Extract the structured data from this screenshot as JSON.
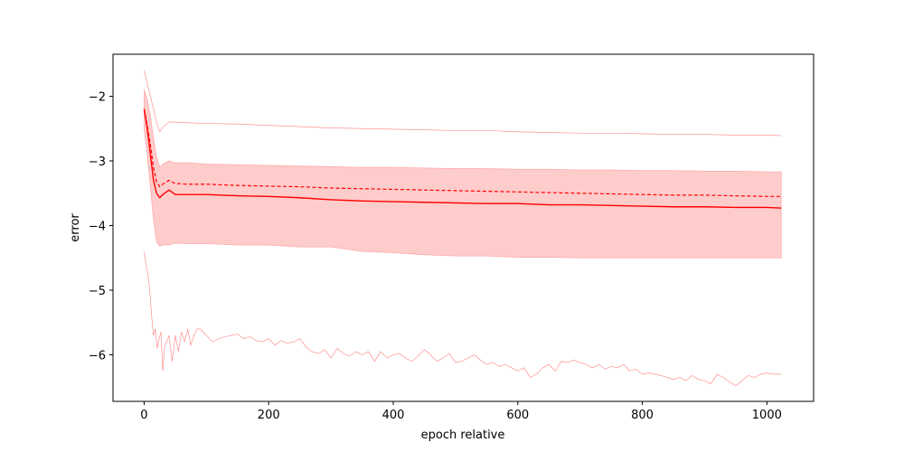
{
  "chart_data": {
    "type": "line",
    "title": "",
    "xlabel": "epoch relative",
    "ylabel": "error",
    "xlim": [
      -50,
      1075
    ],
    "ylim": [
      -6.72,
      -1.35
    ],
    "xticks": [
      0,
      200,
      400,
      600,
      800,
      1000
    ],
    "yticks": [
      -2,
      -3,
      -4,
      -5,
      -6
    ],
    "grid": false,
    "legend": "none",
    "colors": {
      "line": "#ff0000",
      "band_fill": "#ffcccc",
      "band_edge": "#ffaaaa",
      "extreme": "#ff7f7f"
    },
    "band": {
      "x": [
        0,
        5,
        10,
        15,
        20,
        25,
        30,
        40,
        50,
        70,
        100,
        150,
        200,
        250,
        300,
        350,
        400,
        450,
        500,
        550,
        600,
        650,
        700,
        750,
        800,
        850,
        900,
        950,
        1000,
        1023
      ],
      "upper": [
        -1.9,
        -2.05,
        -2.3,
        -2.65,
        -2.95,
        -3.1,
        -3.05,
        -3.0,
        -3.03,
        -3.03,
        -3.05,
        -3.06,
        -3.07,
        -3.08,
        -3.09,
        -3.1,
        -3.1,
        -3.11,
        -3.12,
        -3.12,
        -3.13,
        -3.13,
        -3.14,
        -3.14,
        -3.15,
        -3.15,
        -3.16,
        -3.16,
        -3.17,
        -3.17
      ],
      "lower": [
        -2.5,
        -2.9,
        -3.4,
        -3.9,
        -4.25,
        -4.32,
        -4.3,
        -4.3,
        -4.27,
        -4.28,
        -4.28,
        -4.3,
        -4.3,
        -4.33,
        -4.33,
        -4.4,
        -4.42,
        -4.45,
        -4.47,
        -4.47,
        -4.49,
        -4.49,
        -4.5,
        -4.5,
        -4.5,
        -4.5,
        -4.5,
        -4.5,
        -4.5,
        -4.5
      ]
    },
    "series": [
      {
        "style": "solid",
        "x": [
          0,
          5,
          10,
          15,
          20,
          25,
          30,
          40,
          50,
          70,
          100,
          150,
          200,
          250,
          300,
          350,
          400,
          450,
          500,
          550,
          600,
          650,
          700,
          750,
          800,
          850,
          900,
          950,
          1000,
          1023
        ],
        "y": [
          -2.2,
          -2.5,
          -2.9,
          -3.3,
          -3.5,
          -3.57,
          -3.52,
          -3.45,
          -3.52,
          -3.52,
          -3.52,
          -3.54,
          -3.55,
          -3.57,
          -3.6,
          -3.62,
          -3.63,
          -3.64,
          -3.65,
          -3.66,
          -3.66,
          -3.68,
          -3.68,
          -3.69,
          -3.7,
          -3.71,
          -3.71,
          -3.72,
          -3.72,
          -3.73
        ]
      },
      {
        "style": "dashed",
        "x": [
          0,
          5,
          10,
          15,
          20,
          25,
          30,
          40,
          50,
          70,
          100,
          150,
          200,
          250,
          300,
          350,
          400,
          450,
          500,
          550,
          600,
          650,
          700,
          750,
          800,
          850,
          900,
          950,
          1000,
          1023
        ],
        "y": [
          -2.2,
          -2.45,
          -2.75,
          -3.1,
          -3.32,
          -3.4,
          -3.36,
          -3.3,
          -3.35,
          -3.36,
          -3.36,
          -3.38,
          -3.39,
          -3.4,
          -3.42,
          -3.43,
          -3.44,
          -3.45,
          -3.46,
          -3.47,
          -3.48,
          -3.49,
          -3.5,
          -3.51,
          -3.52,
          -3.53,
          -3.53,
          -3.54,
          -3.55,
          -3.55
        ]
      },
      {
        "style": "thin",
        "x": [
          0,
          10,
          20,
          25,
          30,
          40,
          50,
          70,
          100,
          150,
          200,
          250,
          300,
          350,
          400,
          450,
          500,
          550,
          600,
          650,
          700,
          750,
          800,
          850,
          900,
          950,
          1000,
          1023
        ],
        "y": [
          -1.6,
          -2.0,
          -2.4,
          -2.55,
          -2.48,
          -2.4,
          -2.4,
          -2.41,
          -2.42,
          -2.43,
          -2.45,
          -2.47,
          -2.49,
          -2.5,
          -2.51,
          -2.52,
          -2.53,
          -2.53,
          -2.55,
          -2.56,
          -2.57,
          -2.57,
          -2.58,
          -2.59,
          -2.59,
          -2.6,
          -2.6,
          -2.61
        ]
      },
      {
        "style": "thin",
        "x": [
          0,
          3,
          6,
          9,
          12,
          15,
          18,
          21,
          24,
          27,
          30,
          33,
          36,
          40,
          45,
          50,
          55,
          60,
          65,
          70,
          75,
          80,
          85,
          90,
          95,
          100,
          110,
          120,
          130,
          140,
          150,
          160,
          170,
          180,
          190,
          200,
          210,
          220,
          230,
          240,
          250,
          260,
          270,
          280,
          290,
          300,
          310,
          320,
          330,
          340,
          350,
          360,
          370,
          380,
          390,
          400,
          410,
          420,
          430,
          440,
          450,
          460,
          470,
          480,
          490,
          500,
          510,
          520,
          530,
          540,
          550,
          560,
          570,
          580,
          590,
          600,
          610,
          620,
          630,
          640,
          650,
          660,
          670,
          680,
          690,
          700,
          710,
          720,
          730,
          740,
          750,
          760,
          770,
          780,
          790,
          800,
          810,
          820,
          830,
          840,
          850,
          860,
          870,
          880,
          890,
          900,
          910,
          920,
          930,
          940,
          950,
          960,
          970,
          980,
          990,
          1000,
          1010,
          1023
        ],
        "y": [
          -4.4,
          -4.6,
          -4.75,
          -5.0,
          -5.4,
          -5.7,
          -5.6,
          -5.9,
          -5.75,
          -5.65,
          -6.25,
          -5.85,
          -5.8,
          -5.7,
          -6.1,
          -5.7,
          -5.95,
          -5.65,
          -5.8,
          -5.6,
          -5.85,
          -5.7,
          -5.6,
          -5.6,
          -5.65,
          -5.7,
          -5.8,
          -5.75,
          -5.72,
          -5.7,
          -5.68,
          -5.75,
          -5.72,
          -5.78,
          -5.8,
          -5.75,
          -5.85,
          -5.78,
          -5.82,
          -5.8,
          -5.75,
          -5.88,
          -5.95,
          -5.98,
          -5.92,
          -6.05,
          -5.9,
          -5.98,
          -6.02,
          -5.95,
          -6.0,
          -5.95,
          -6.1,
          -5.95,
          -6.05,
          -6.0,
          -5.98,
          -6.05,
          -6.1,
          -6.02,
          -5.92,
          -6.0,
          -6.1,
          -6.05,
          -5.98,
          -6.12,
          -6.1,
          -6.05,
          -6.0,
          -6.08,
          -6.15,
          -6.12,
          -6.18,
          -6.15,
          -6.2,
          -6.25,
          -6.2,
          -6.35,
          -6.3,
          -6.2,
          -6.15,
          -6.25,
          -6.1,
          -6.12,
          -6.08,
          -6.12,
          -6.15,
          -6.2,
          -6.15,
          -6.22,
          -6.18,
          -6.2,
          -6.15,
          -6.25,
          -6.22,
          -6.3,
          -6.28,
          -6.3,
          -6.32,
          -6.35,
          -6.38,
          -6.35,
          -6.4,
          -6.32,
          -6.38,
          -6.4,
          -6.45,
          -6.3,
          -6.35,
          -6.42,
          -6.48,
          -6.4,
          -6.32,
          -6.35,
          -6.3,
          -6.28,
          -6.3,
          -6.3
        ]
      }
    ]
  }
}
